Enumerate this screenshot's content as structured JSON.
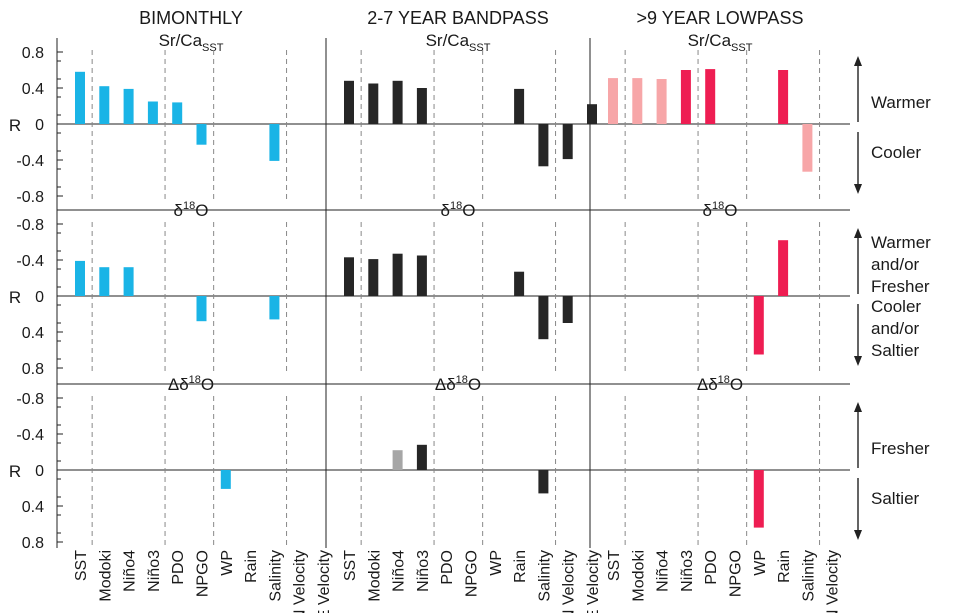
{
  "chart_data": {
    "type": "bar",
    "column_titles": [
      "BIMONTHLY",
      "2-7 YEAR BANDPASS",
      ">9 YEAR LOWPASS"
    ],
    "categories": [
      "SST",
      "Modoki",
      "Niño4",
      "Niño3",
      "PDO",
      "NPGO",
      "WP",
      "Rain",
      "Salinity",
      "N Velocity",
      "E Velocity"
    ],
    "ylabel": "R",
    "colors": {
      "bimonthly": "#1ab4e6",
      "bandpass": "#262626",
      "bandpass_light": "#a6a6a6",
      "lowpass": "#ee1d52",
      "lowpass_light": "#f7a6a8"
    },
    "rows": [
      {
        "title_base": "Sr/Ca",
        "title_sub": "SST",
        "ylim": [
          -0.8,
          0.8
        ],
        "inverted": false,
        "tick_labels": [
          "0.8",
          "0.4",
          "0",
          "-0.4",
          "-0.8"
        ],
        "side_labels": [
          [
            "Warmer"
          ],
          [
            "Cooler"
          ]
        ],
        "panels": [
          {
            "values": [
              0.58,
              0.42,
              0.39,
              0.25,
              0.24,
              -0.23,
              null,
              null,
              -0.41,
              null,
              null
            ],
            "shade": [
              "d",
              "d",
              "d",
              "d",
              "d",
              "d",
              "d",
              "d",
              "d",
              "d",
              "d"
            ]
          },
          {
            "values": [
              0.48,
              0.45,
              0.48,
              0.4,
              null,
              null,
              null,
              0.39,
              -0.47,
              -0.39,
              0.22
            ],
            "shade": [
              "d",
              "d",
              "d",
              "d",
              "d",
              "d",
              "d",
              "d",
              "d",
              "d",
              "d"
            ]
          },
          {
            "values": [
              0.51,
              0.51,
              0.5,
              0.6,
              0.61,
              null,
              null,
              0.6,
              -0.53,
              null,
              null
            ],
            "shade": [
              "l",
              "l",
              "l",
              "d",
              "d",
              "d",
              "d",
              "d",
              "l",
              "d",
              "d"
            ]
          }
        ]
      },
      {
        "title_base": "δ",
        "title_sup": "18",
        "title_tail": "O",
        "ylim": [
          -0.8,
          0.8
        ],
        "inverted": true,
        "tick_labels": [
          "-0.8",
          "-0.4",
          "0",
          "0.4",
          "0.8"
        ],
        "side_labels": [
          [
            "Warmer",
            "and/or",
            "Fresher"
          ],
          [
            "Cooler",
            "and/or",
            "Saltier"
          ]
        ],
        "panels": [
          {
            "values": [
              -0.39,
              -0.32,
              -0.32,
              null,
              null,
              0.28,
              null,
              null,
              0.26,
              null,
              null
            ],
            "shade": [
              "d",
              "d",
              "d",
              "d",
              "d",
              "d",
              "d",
              "d",
              "d",
              "d",
              "d"
            ]
          },
          {
            "values": [
              -0.43,
              -0.41,
              -0.47,
              -0.45,
              null,
              null,
              null,
              -0.27,
              0.48,
              0.3,
              null
            ],
            "shade": [
              "d",
              "d",
              "d",
              "d",
              "d",
              "d",
              "d",
              "d",
              "d",
              "d",
              "d"
            ]
          },
          {
            "values": [
              null,
              null,
              null,
              null,
              null,
              null,
              0.65,
              -0.62,
              null,
              null,
              null
            ],
            "shade": [
              "d",
              "d",
              "d",
              "d",
              "d",
              "d",
              "d",
              "d",
              "d",
              "d",
              "d"
            ]
          }
        ]
      },
      {
        "title_base": "Δδ",
        "title_sup": "18",
        "title_tail": "O",
        "ylim": [
          -0.8,
          0.8
        ],
        "inverted": true,
        "tick_labels": [
          "-0.8",
          "-0.4",
          "0",
          "0.4",
          "0.8"
        ],
        "side_labels": [
          [
            "Fresher"
          ],
          [
            "Saltier"
          ]
        ],
        "panels": [
          {
            "values": [
              null,
              null,
              null,
              null,
              null,
              null,
              0.21,
              null,
              null,
              null,
              null
            ],
            "shade": [
              "d",
              "d",
              "d",
              "d",
              "d",
              "d",
              "d",
              "d",
              "d",
              "d",
              "d"
            ]
          },
          {
            "values": [
              null,
              null,
              -0.22,
              -0.28,
              null,
              null,
              null,
              null,
              0.26,
              null,
              null
            ],
            "shade": [
              "d",
              "d",
              "l",
              "d",
              "d",
              "d",
              "d",
              "d",
              "d",
              "d",
              "d"
            ]
          },
          {
            "values": [
              null,
              null,
              null,
              null,
              null,
              null,
              0.64,
              null,
              null,
              null,
              null
            ],
            "shade": [
              "d",
              "d",
              "d",
              "d",
              "d",
              "d",
              "d",
              "d",
              "d",
              "d",
              "d"
            ]
          }
        ]
      }
    ]
  }
}
